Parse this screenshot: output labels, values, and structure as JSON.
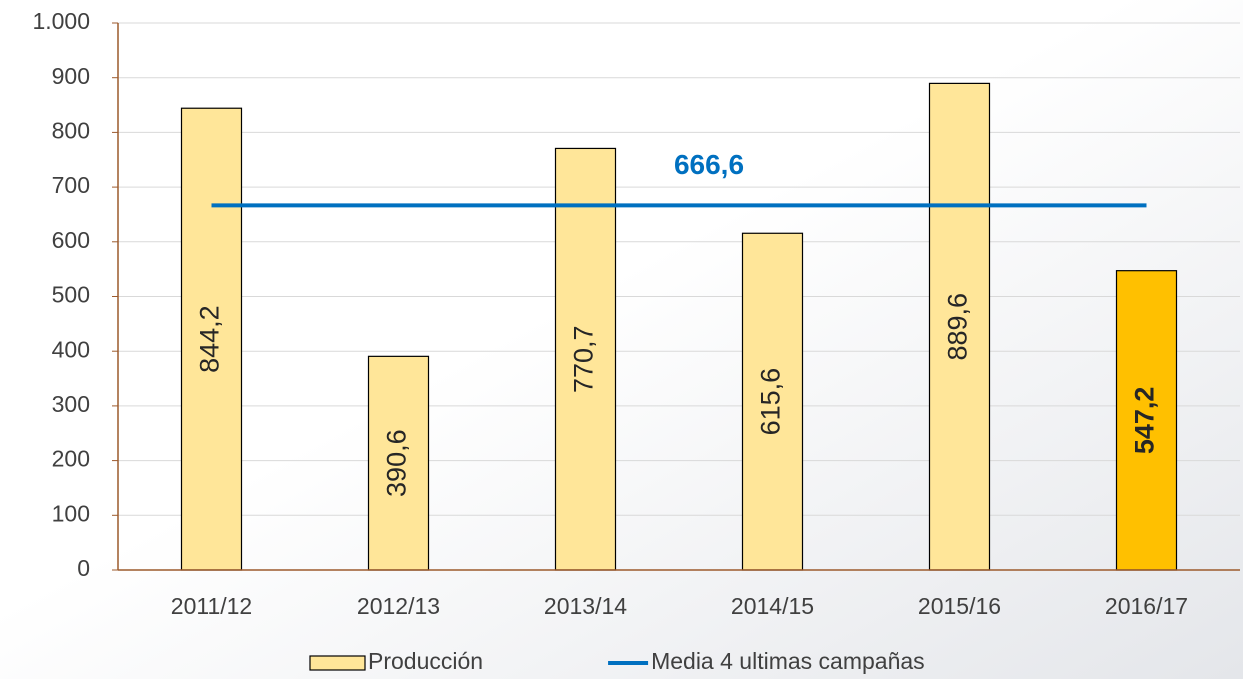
{
  "chart_data": {
    "type": "bar",
    "categories": [
      "2011/12",
      "2012/13",
      "2013/14",
      "2014/15",
      "2015/16",
      "2016/17"
    ],
    "series": [
      {
        "name": "Producción",
        "type": "bar",
        "color": "#ffe699",
        "colors": [
          "#ffe699",
          "#ffe699",
          "#ffe699",
          "#ffe699",
          "#ffe699",
          "#ffc000"
        ],
        "values": [
          844.2,
          390.6,
          770.7,
          615.6,
          889.6,
          547.2
        ],
        "value_labels": [
          "844,2",
          "390,6",
          "770,7",
          "615,6",
          "889,6",
          "547,2"
        ],
        "value_label_bold": [
          false,
          false,
          false,
          false,
          false,
          true
        ]
      },
      {
        "name": "Media 4 ultimas campañas",
        "type": "line",
        "color": "#0070c0",
        "values": [
          666.6,
          666.6,
          666.6,
          666.6,
          666.6,
          666.6
        ]
      }
    ],
    "annotations": [
      {
        "text": "666,6",
        "series": 1
      }
    ],
    "ylim": [
      0,
      1000
    ],
    "yticks": [
      0,
      100,
      200,
      300,
      400,
      500,
      600,
      700,
      800,
      900,
      {
        "value": 1000,
        "label": "1.000"
      }
    ],
    "grid": true,
    "legend": "bottom"
  }
}
